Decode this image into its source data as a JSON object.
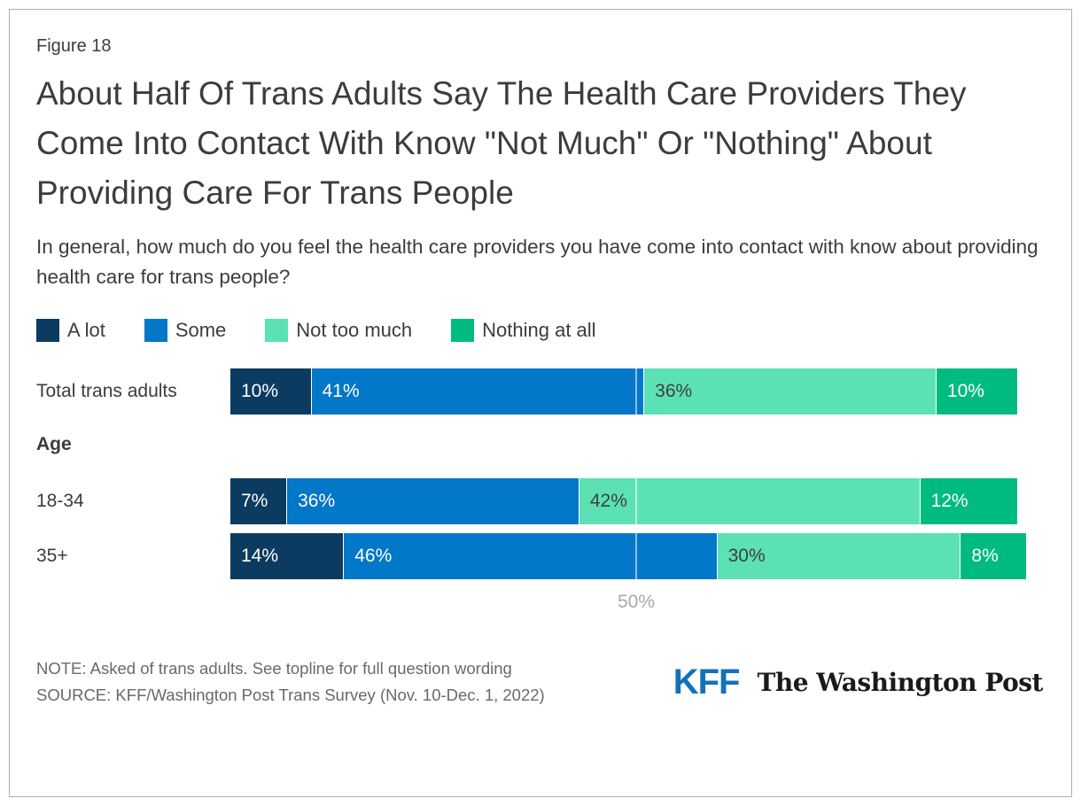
{
  "figure_label": "Figure 18",
  "title": "About Half Of Trans Adults Say The Health Care Providers They Come Into Contact With Know \"Not Much\" Or \"Nothing\" About Providing Care For Trans People",
  "subtitle": "In general, how much do you feel the health care providers you have come into contact with know about providing health care for trans people?",
  "chart_data": {
    "type": "bar",
    "stacked": true,
    "orientation": "horizontal",
    "xlim": [
      0,
      100
    ],
    "grid": "single-tick-overlay",
    "legend_position": "top",
    "categories": [
      "Total trans adults",
      "18-34",
      "35+"
    ],
    "group_label": "Age",
    "plain_row_indexes": [
      0
    ],
    "group_row_indexes": [
      1,
      2
    ],
    "series": [
      {
        "name": "A lot",
        "color": "#0b3b61",
        "text_color": "#ffffff",
        "values": [
          10,
          7,
          14
        ]
      },
      {
        "name": "Some",
        "color": "#0377c8",
        "text_color": "#ffffff",
        "values": [
          41,
          36,
          46
        ]
      },
      {
        "name": "Not too much",
        "color": "#5ce1b4",
        "text_color": "#3f3f3f",
        "values": [
          36,
          42,
          30
        ]
      },
      {
        "name": "Nothing at all",
        "color": "#00bb80",
        "text_color": "#ffffff",
        "values": [
          10,
          12,
          8
        ]
      }
    ],
    "value_suffix": "%",
    "axis": {
      "tick_label": "50%",
      "tick_value": 50
    }
  },
  "footer": {
    "note": "NOTE: Asked of trans adults. See topline for full question wording",
    "source": "SOURCE: KFF/Washington Post Trans Survey (Nov. 10-Dec. 1, 2022)",
    "logo_kff": "KFF",
    "logo_wapo": "The Washington Post"
  },
  "colors": {
    "card_border": "#b0b0b0",
    "text": "#3c3c3c",
    "footnote_text": "#67696b",
    "axis_label": "#a8a8a8",
    "kff_blue": "#1371b9"
  }
}
